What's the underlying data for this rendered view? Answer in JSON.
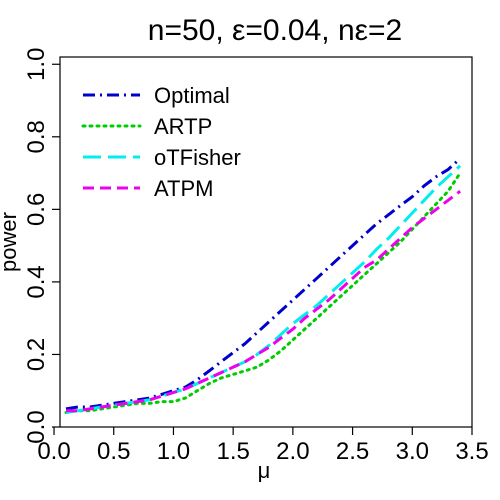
{
  "chart_data": {
    "type": "line",
    "title": "n=50, ε=0.04, nε=2",
    "xlabel": "μ",
    "ylabel": "power",
    "xlim": [
      0.05,
      3.5
    ],
    "ylim": [
      0.0,
      1.02
    ],
    "xticks": [
      "0.0",
      "0.5",
      "1.0",
      "1.5",
      "2.0",
      "2.5",
      "3.0",
      "3.5"
    ],
    "yticks": [
      "0.0",
      "0.2",
      "0.4",
      "0.6",
      "0.8",
      "1.0"
    ],
    "grid": false,
    "legend_position": "top-left",
    "x": [
      0.1,
      0.2,
      0.3,
      0.4,
      0.5,
      0.6,
      0.7,
      0.8,
      0.9,
      1.0,
      1.1,
      1.2,
      1.3,
      1.4,
      1.5,
      1.6,
      1.7,
      1.8,
      1.9,
      2.0,
      2.1,
      2.2,
      2.3,
      2.4,
      2.5,
      2.6,
      2.7,
      2.8,
      2.9,
      3.0,
      3.1,
      3.2,
      3.3,
      3.4
    ],
    "series": [
      {
        "name": "Optimal",
        "color": "#0000CD",
        "dash": "dashdot",
        "values": [
          0.05,
          0.055,
          0.055,
          0.06,
          0.065,
          0.07,
          0.075,
          0.08,
          0.09,
          0.1,
          0.11,
          0.13,
          0.155,
          0.18,
          0.205,
          0.23,
          0.26,
          0.29,
          0.32,
          0.35,
          0.38,
          0.41,
          0.44,
          0.47,
          0.5,
          0.53,
          0.56,
          0.585,
          0.61,
          0.635,
          0.665,
          0.69,
          0.71,
          0.74
        ]
      },
      {
        "name": "ARTP",
        "color": "#00CD00",
        "dash": "dotted",
        "values": [
          0.04,
          0.045,
          0.045,
          0.05,
          0.055,
          0.06,
          0.065,
          0.065,
          0.07,
          0.07,
          0.08,
          0.1,
          0.12,
          0.135,
          0.145,
          0.155,
          0.165,
          0.185,
          0.21,
          0.24,
          0.27,
          0.3,
          0.33,
          0.36,
          0.39,
          0.42,
          0.45,
          0.48,
          0.51,
          0.545,
          0.58,
          0.615,
          0.65,
          0.7
        ]
      },
      {
        "name": "oTFisher",
        "color": "#00EEEE",
        "dash": "longdash",
        "values": [
          0.04,
          0.045,
          0.05,
          0.055,
          0.06,
          0.065,
          0.07,
          0.075,
          0.085,
          0.095,
          0.105,
          0.12,
          0.135,
          0.15,
          0.165,
          0.18,
          0.2,
          0.225,
          0.255,
          0.285,
          0.31,
          0.335,
          0.365,
          0.395,
          0.425,
          0.455,
          0.49,
          0.52,
          0.555,
          0.59,
          0.625,
          0.66,
          0.69,
          0.72
        ]
      },
      {
        "name": "ATPM",
        "color": "#EE00EE",
        "dash": "dashed",
        "values": [
          0.045,
          0.045,
          0.05,
          0.055,
          0.06,
          0.065,
          0.07,
          0.075,
          0.085,
          0.095,
          0.105,
          0.12,
          0.135,
          0.15,
          0.165,
          0.18,
          0.2,
          0.22,
          0.245,
          0.27,
          0.3,
          0.325,
          0.35,
          0.38,
          0.41,
          0.44,
          0.46,
          0.49,
          0.52,
          0.55,
          0.575,
          0.6,
          0.625,
          0.65
        ]
      }
    ]
  }
}
